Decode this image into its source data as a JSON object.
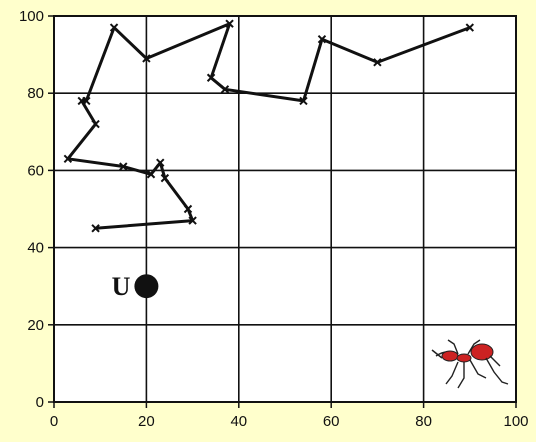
{
  "chart_data": {
    "type": "line",
    "title": "",
    "xlabel": "",
    "ylabel": "",
    "xlim": [
      0,
      100
    ],
    "ylim": [
      0,
      100
    ],
    "x_ticks": [
      0,
      20,
      40,
      60,
      80,
      100
    ],
    "y_ticks": [
      0,
      20,
      40,
      60,
      80,
      100
    ],
    "grid": true,
    "series": [
      {
        "x": [
          90,
          70,
          58,
          54,
          37,
          34,
          38,
          20,
          13,
          7,
          6,
          9,
          3,
          15,
          21,
          23,
          24,
          29,
          30,
          9
        ],
        "y": [
          97,
          88,
          94,
          78,
          81,
          84,
          98,
          89,
          97,
          78,
          78,
          72,
          63,
          61,
          59,
          62,
          58,
          50,
          47,
          45
        ]
      }
    ],
    "points": [
      {
        "label": "U",
        "x": 20,
        "y": 30
      }
    ]
  },
  "colors": {
    "background": "#ffffcc",
    "plot_area": "#ffffff",
    "line": "#111111",
    "ant": "#cc2222"
  },
  "icons": [
    "ant-icon"
  ]
}
